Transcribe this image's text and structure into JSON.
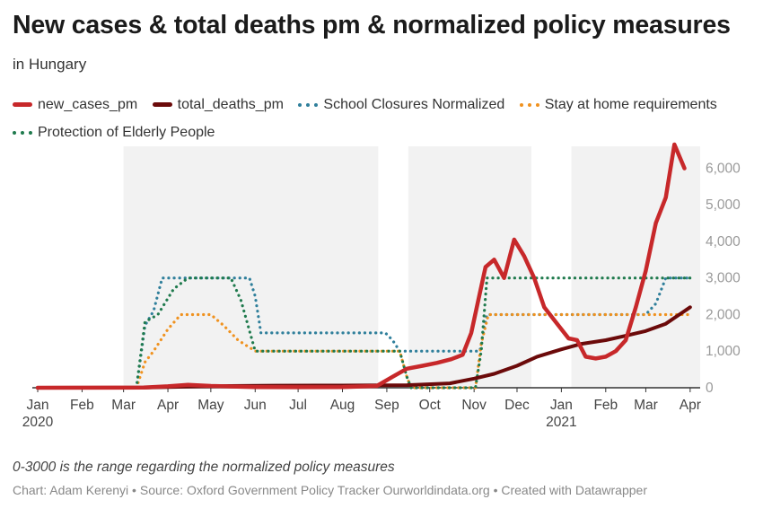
{
  "title": "New cases & total deaths pm & normalized policy measures",
  "subtitle": "in Hungary",
  "note": "0-3000 is the range regarding the normalized policy measures",
  "footer": "Chart: Adam Kerenyi • Source: Oxford Government Policy Tracker Ourworldindata.org • Created with Datawrapper",
  "legend": [
    {
      "label": "new_cases_pm",
      "color": "#c7282a",
      "style": "solid"
    },
    {
      "label": "total_deaths_pm",
      "color": "#6b0a0a",
      "style": "solid"
    },
    {
      "label": "School Closures Normalized",
      "color": "#2f7f9b",
      "style": "dots"
    },
    {
      "label": "Stay at home requirements",
      "color": "#f0921f",
      "style": "dots"
    },
    {
      "label": "Protection of Elderly People",
      "color": "#1f7a4d",
      "style": "dots"
    }
  ],
  "chart_data": {
    "type": "line",
    "x_axis": {
      "range": [
        "2020-01-01",
        "2021-04-08"
      ],
      "ticks": [
        {
          "date": "2020-01-01",
          "label": "Jan",
          "sublabel": "2020"
        },
        {
          "date": "2020-02-01",
          "label": "Feb"
        },
        {
          "date": "2020-03-01",
          "label": "Mar"
        },
        {
          "date": "2020-04-01",
          "label": "Apr"
        },
        {
          "date": "2020-05-01",
          "label": "May"
        },
        {
          "date": "2020-06-01",
          "label": "Jun"
        },
        {
          "date": "2020-07-01",
          "label": "Jul"
        },
        {
          "date": "2020-08-01",
          "label": "Aug"
        },
        {
          "date": "2020-09-01",
          "label": "Sep"
        },
        {
          "date": "2020-10-01",
          "label": "Oct"
        },
        {
          "date": "2020-11-01",
          "label": "Nov"
        },
        {
          "date": "2020-12-01",
          "label": "Dec"
        },
        {
          "date": "2021-01-01",
          "label": "Jan",
          "sublabel": "2021"
        },
        {
          "date": "2021-02-01",
          "label": "Feb"
        },
        {
          "date": "2021-03-01",
          "label": "Mar"
        },
        {
          "date": "2021-04-01",
          "label": "Apr"
        }
      ]
    },
    "y_axis": {
      "range": [
        0,
        6600
      ],
      "ticks": [
        0,
        1000,
        2000,
        3000,
        4000,
        5000,
        6000
      ],
      "tick_labels": [
        "0",
        "1,000",
        "2,000",
        "3,000",
        "4,000",
        "5,000",
        "6,000"
      ],
      "position": "right"
    },
    "shaded_periods": [
      [
        "2020-03-01",
        "2020-08-26"
      ],
      [
        "2020-09-16",
        "2020-12-11"
      ],
      [
        "2021-01-08",
        "2021-04-08"
      ]
    ],
    "series": [
      {
        "name": "new_cases_pm",
        "color": "#c7282a",
        "style": "solid",
        "points": [
          [
            "2020-01-01",
            0
          ],
          [
            "2020-03-15",
            5
          ],
          [
            "2020-04-01",
            40
          ],
          [
            "2020-04-15",
            80
          ],
          [
            "2020-05-01",
            50
          ],
          [
            "2020-06-01",
            20
          ],
          [
            "2020-07-01",
            15
          ],
          [
            "2020-08-01",
            20
          ],
          [
            "2020-08-25",
            50
          ],
          [
            "2020-09-05",
            300
          ],
          [
            "2020-09-15",
            520
          ],
          [
            "2020-09-26",
            600
          ],
          [
            "2020-10-06",
            680
          ],
          [
            "2020-10-16",
            780
          ],
          [
            "2020-10-24",
            900
          ],
          [
            "2020-10-30",
            1500
          ],
          [
            "2020-11-04",
            2400
          ],
          [
            "2020-11-09",
            3300
          ],
          [
            "2020-11-15",
            3500
          ],
          [
            "2020-11-22",
            3000
          ],
          [
            "2020-11-29",
            4050
          ],
          [
            "2020-12-06",
            3600
          ],
          [
            "2020-12-13",
            3000
          ],
          [
            "2020-12-20",
            2200
          ],
          [
            "2020-12-28",
            1800
          ],
          [
            "2021-01-06",
            1350
          ],
          [
            "2021-01-12",
            1300
          ],
          [
            "2021-01-18",
            850
          ],
          [
            "2021-01-25",
            800
          ],
          [
            "2021-02-01",
            850
          ],
          [
            "2021-02-08",
            1000
          ],
          [
            "2021-02-15",
            1300
          ],
          [
            "2021-02-22",
            2200
          ],
          [
            "2021-03-01",
            3200
          ],
          [
            "2021-03-08",
            4500
          ],
          [
            "2021-03-15",
            5200
          ],
          [
            "2021-03-21",
            6650
          ],
          [
            "2021-03-28",
            6000
          ]
        ]
      },
      {
        "name": "total_deaths_pm",
        "color": "#6b0a0a",
        "style": "solid",
        "points": [
          [
            "2020-01-01",
            0
          ],
          [
            "2020-03-15",
            2
          ],
          [
            "2020-04-15",
            30
          ],
          [
            "2020-05-15",
            50
          ],
          [
            "2020-06-15",
            60
          ],
          [
            "2020-07-15",
            62
          ],
          [
            "2020-08-15",
            65
          ],
          [
            "2020-09-15",
            72
          ],
          [
            "2020-10-15",
            120
          ],
          [
            "2020-11-01",
            250
          ],
          [
            "2020-11-15",
            380
          ],
          [
            "2020-12-01",
            600
          ],
          [
            "2020-12-15",
            850
          ],
          [
            "2021-01-01",
            1050
          ],
          [
            "2021-01-15",
            1200
          ],
          [
            "2021-02-01",
            1300
          ],
          [
            "2021-02-15",
            1420
          ],
          [
            "2021-03-01",
            1550
          ],
          [
            "2021-03-15",
            1750
          ],
          [
            "2021-04-01",
            2200
          ]
        ]
      },
      {
        "name": "School Closures Normalized",
        "color": "#2f7f9b",
        "style": "dots",
        "points": [
          [
            "2020-01-01",
            0
          ],
          [
            "2020-03-10",
            0
          ],
          [
            "2020-03-16",
            1700
          ],
          [
            "2020-03-22",
            2100
          ],
          [
            "2020-03-28",
            3000
          ],
          [
            "2020-05-28",
            3000
          ],
          [
            "2020-06-01",
            2500
          ],
          [
            "2020-06-05",
            1500
          ],
          [
            "2020-08-31",
            1500
          ],
          [
            "2020-09-05",
            1300
          ],
          [
            "2020-09-10",
            1000
          ],
          [
            "2020-11-05",
            1000
          ],
          [
            "2020-11-10",
            2000
          ],
          [
            "2021-03-01",
            2000
          ],
          [
            "2021-03-08",
            2300
          ],
          [
            "2021-03-15",
            3000
          ],
          [
            "2021-04-01",
            3000
          ]
        ]
      },
      {
        "name": "Stay at home requirements",
        "color": "#f0921f",
        "style": "dots",
        "points": [
          [
            "2020-01-01",
            0
          ],
          [
            "2020-03-10",
            0
          ],
          [
            "2020-03-16",
            700
          ],
          [
            "2020-03-22",
            1000
          ],
          [
            "2020-04-01",
            1600
          ],
          [
            "2020-04-10",
            2000
          ],
          [
            "2020-05-01",
            2000
          ],
          [
            "2020-05-10",
            1700
          ],
          [
            "2020-05-20",
            1300
          ],
          [
            "2020-06-01",
            1000
          ],
          [
            "2020-09-10",
            1000
          ],
          [
            "2020-09-15",
            300
          ],
          [
            "2020-09-18",
            0
          ],
          [
            "2020-11-02",
            0
          ],
          [
            "2020-11-06",
            1200
          ],
          [
            "2020-11-11",
            2000
          ],
          [
            "2021-04-01",
            2000
          ]
        ]
      },
      {
        "name": "Protection of Elderly People",
        "color": "#1f7a4d",
        "style": "dots",
        "points": [
          [
            "2020-01-01",
            0
          ],
          [
            "2020-03-10",
            0
          ],
          [
            "2020-03-16",
            1800
          ],
          [
            "2020-03-25",
            2000
          ],
          [
            "2020-04-05",
            2700
          ],
          [
            "2020-04-15",
            3000
          ],
          [
            "2020-05-15",
            3000
          ],
          [
            "2020-05-22",
            2400
          ],
          [
            "2020-06-01",
            1000
          ],
          [
            "2020-09-10",
            1000
          ],
          [
            "2020-09-15",
            300
          ],
          [
            "2020-09-18",
            0
          ],
          [
            "2020-11-02",
            0
          ],
          [
            "2020-11-06",
            1000
          ],
          [
            "2020-11-10",
            3000
          ],
          [
            "2021-04-01",
            3000
          ]
        ]
      }
    ],
    "grid": false,
    "legend_position": "top"
  }
}
